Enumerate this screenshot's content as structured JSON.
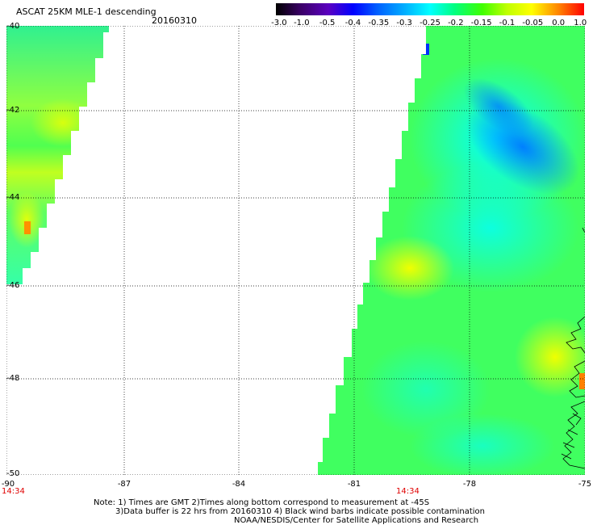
{
  "header": {
    "title": "ASCAT 25KM MLE-1 descending",
    "date": "20160310"
  },
  "colorbar": {
    "labels": [
      "-3.0",
      "-1.0",
      "-0.5",
      "-0.4",
      "-0.35",
      "-0.3",
      "-0.25",
      "-0.2",
      "-0.15",
      "-0.1",
      "-0.05",
      "0.0",
      "1.0"
    ],
    "colors": [
      "#000000",
      "#3a0066",
      "#5a00c0",
      "#0000ff",
      "#0060ff",
      "#00b0ff",
      "#00ffff",
      "#00ff80",
      "#40ff00",
      "#c0ff00",
      "#ffff00",
      "#ff8000",
      "#ff0000"
    ]
  },
  "axes": {
    "lat_labels": [
      "-40",
      "-42",
      "-44",
      "-46",
      "-48",
      "-50"
    ],
    "lat_values": [
      -40,
      -42,
      -44,
      -46,
      -48,
      -50
    ],
    "lon_labels": [
      "-90",
      "-87",
      "-84",
      "-81",
      "-78",
      "-75"
    ],
    "lon_values": [
      -90,
      -87,
      -84,
      -81,
      -78,
      -75
    ],
    "lon_range": [
      -90,
      -75
    ],
    "lat_range": [
      -40,
      -50
    ]
  },
  "times": {
    "left": "14:34",
    "right": "14:34"
  },
  "notes": {
    "line1": "Note: 1) Times are GMT 2)Times along bottom correspond to measurement at -45S",
    "line2": "3)Data buffer is 22 hrs from 20160310 4) Black wind barbs indicate possible contamination",
    "line3": "NOAA/NESDIS/Center for Satellite Applications and Research"
  }
}
